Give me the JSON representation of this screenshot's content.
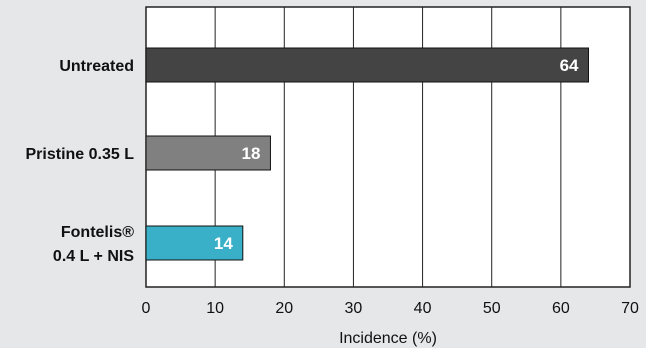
{
  "chart_data": {
    "type": "bar",
    "orientation": "horizontal",
    "categories": [
      [
        "Untreated"
      ],
      [
        "Pristine 0.35 L"
      ],
      [
        "Fontelis®",
        "0.4 L + NIS"
      ]
    ],
    "values": [
      64,
      18,
      14
    ],
    "value_labels": [
      "64",
      "18",
      "14"
    ],
    "colors": [
      "#444444",
      "#808080",
      "#3ab0c8"
    ],
    "xlabel": "Incidence (%)",
    "xlim": [
      0,
      70
    ],
    "xticks": [
      0,
      10,
      20,
      30,
      40,
      50,
      60,
      70
    ],
    "grid": "vertical",
    "background": "#e6e7e8",
    "plot_background": "#ffffff"
  }
}
